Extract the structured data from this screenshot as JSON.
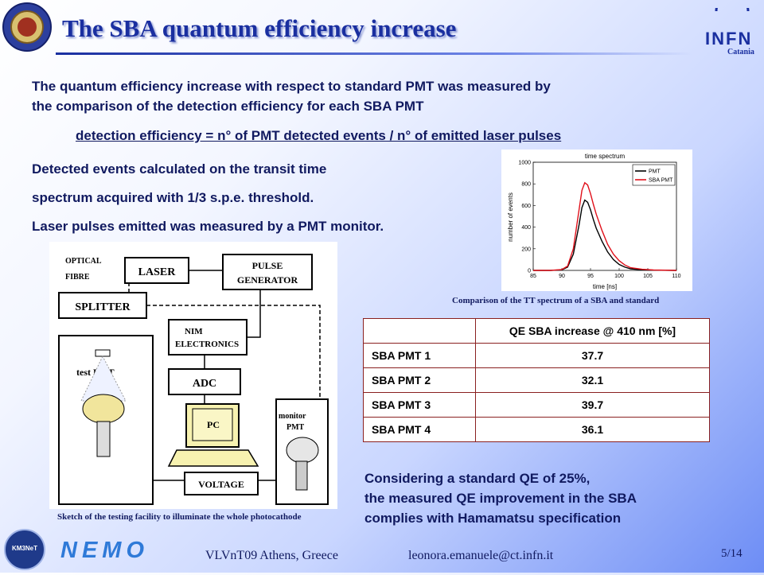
{
  "header": {
    "title": "The SBA quantum efficiency increase",
    "logo_right_text": "INFN",
    "logo_right_sub": "Catania"
  },
  "intro": {
    "line1": "The quantum efficiency increase with respect to standard PMT was measured by",
    "line2": "the comparison of the detection efficiency for each SBA PMT",
    "formula": "detection efficiency = n° of PMT detected events / n° of emitted laser pulses"
  },
  "bullets": [
    "Detected events calculated on the transit time",
    "spectrum acquired with 1/3 s.p.e. threshold.",
    "Laser pulses emitted was measured by a PMT monitor."
  ],
  "chart_data": {
    "type": "line",
    "title": "time spectrum",
    "xlabel": "time [ns]",
    "ylabel": "number of events",
    "xlim": [
      85,
      110
    ],
    "ylim": [
      0,
      1000
    ],
    "xticks": [
      85,
      90,
      95,
      100,
      105,
      110
    ],
    "yticks": [
      0,
      200,
      400,
      600,
      800,
      1000
    ],
    "legend_position": "top-right",
    "x": [
      85,
      88,
      90,
      91,
      92,
      93,
      93.5,
      94,
      94.5,
      95,
      95.5,
      96,
      97,
      98,
      99,
      100,
      101,
      102,
      104,
      106,
      110
    ],
    "series": [
      {
        "name": "PMT",
        "color": "#000000",
        "values": [
          0,
          0,
          5,
          30,
          150,
          420,
          580,
          650,
          630,
          560,
          470,
          390,
          270,
          170,
          100,
          55,
          30,
          15,
          5,
          2,
          0
        ]
      },
      {
        "name": "SBA PMT",
        "color": "#e0101a",
        "values": [
          0,
          0,
          8,
          40,
          200,
          560,
          740,
          810,
          790,
          710,
          610,
          520,
          370,
          240,
          150,
          90,
          50,
          25,
          10,
          4,
          0
        ]
      }
    ],
    "caption": "Comparison of the TT spectrum of a SBA and standard"
  },
  "diagram": {
    "labels": {
      "optical_fibre": "OPTICAL FIBRE",
      "laser": "LASER",
      "pulse_gen": "PULSE GENERATOR",
      "splitter": "SPLITTER",
      "nim": "NIM ELECTRONICS",
      "test_pmt": "test PMT",
      "adc": "ADC",
      "pc": "PC",
      "monitor_pmt": "monitor PMT",
      "voltage": "VOLTAGE"
    },
    "caption": "Sketch of the testing facility to illuminate the whole photocathode"
  },
  "table": {
    "header": "QE SBA increase @ 410 nm [%]",
    "rows": [
      {
        "label": "SBA PMT 1",
        "value": "37.7"
      },
      {
        "label": "SBA PMT 2",
        "value": "32.1"
      },
      {
        "label": "SBA PMT 3",
        "value": "39.7"
      },
      {
        "label": "SBA PMT 4",
        "value": "36.1"
      }
    ]
  },
  "conclusion": [
    "Considering a standard QE of 25%,",
    "the measured QE improvement in the SBA",
    "complies with Hamamatsu specification"
  ],
  "footer": {
    "km3net": "KM3NeT",
    "nemo": "NEMO",
    "conference": "VLVnT09 Athens, Greece",
    "email": "leonora.emanuele@ct.infn.it",
    "page": "5/14"
  }
}
